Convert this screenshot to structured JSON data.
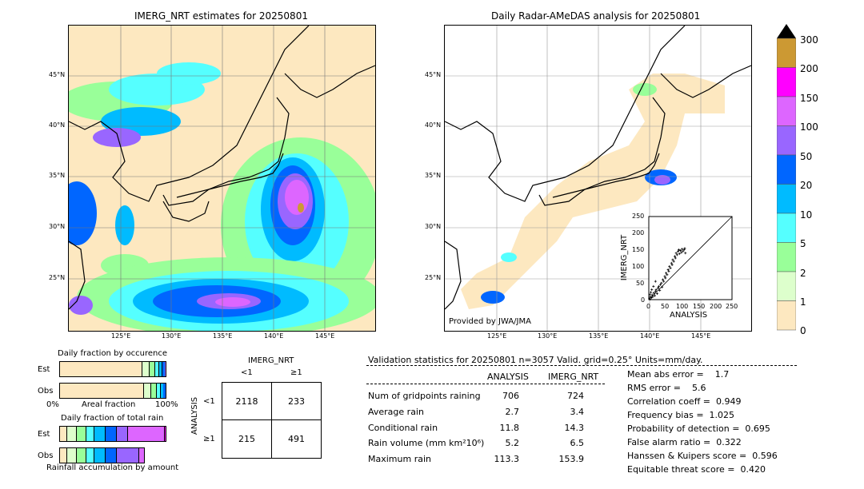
{
  "left_map": {
    "title": "IMERG_NRT estimates for 20250801",
    "lat_labels": [
      "45°N",
      "40°N",
      "35°N",
      "30°N",
      "25°N"
    ],
    "lon_labels": [
      "125°E",
      "130°E",
      "135°E",
      "140°E",
      "145°E"
    ]
  },
  "right_map": {
    "title": "Daily Radar-AMeDAS analysis for 20250801",
    "lat_labels": [
      "45°N",
      "40°N",
      "35°N",
      "30°N",
      "25°N"
    ],
    "lon_labels": [
      "125°E",
      "130°E",
      "135°E",
      "140°E",
      "145°E"
    ],
    "provided_by": "Provided by JWA/JMA"
  },
  "scatter_inset": {
    "xlabel": "ANALYSIS",
    "ylabel": "IMERG_NRT",
    "ticks": [
      "0",
      "50",
      "100",
      "150",
      "200",
      "250"
    ]
  },
  "colorbar": {
    "labels": [
      "300",
      "200",
      "150",
      "100",
      "50",
      "20",
      "10",
      "5",
      "2",
      "1",
      "0"
    ],
    "colors": [
      "#cc9933",
      "#ff00ff",
      "#dd66ff",
      "#9966ff",
      "#0066ff",
      "#00bbff",
      "#55ffff",
      "#99ff99",
      "#ddffcc",
      "#fde8c0"
    ]
  },
  "occurrence": {
    "title": "Daily fraction by occurence",
    "est_label": "Est",
    "obs_label": "Obs",
    "axis_left": "0%",
    "axis_mid": "Areal fraction",
    "axis_right": "100%"
  },
  "total_rain": {
    "title": "Daily fraction of total rain",
    "est_label": "Est",
    "obs_label": "Obs",
    "footer": "Rainfall accumulation by amount"
  },
  "contingency": {
    "col_title": "IMERG_NRT",
    "col_lt": "<1",
    "col_ge": "≥1",
    "row_title": "ANALYSIS",
    "row_lt": "<1",
    "row_ge": "≥1",
    "a": "2118",
    "b": "233",
    "c": "215",
    "d": "491"
  },
  "validation": {
    "header": "Validation statistics for 20250801  n=3057 Valid. grid=0.25° Units=mm/day.",
    "col_analysis": "ANALYSIS",
    "col_imerg": "IMERG_NRT",
    "rows": [
      {
        "label": "Num of gridpoints raining",
        "analysis": "706",
        "imerg": "724"
      },
      {
        "label": "Average rain",
        "analysis": "2.7",
        "imerg": "3.4"
      },
      {
        "label": "Conditional rain",
        "analysis": "11.8",
        "imerg": "14.3"
      },
      {
        "label": "Rain volume (mm km²10⁶)",
        "analysis": "5.2",
        "imerg": "6.5"
      },
      {
        "label": "Maximum rain",
        "analysis": "113.3",
        "imerg": "153.9"
      }
    ],
    "scores": [
      "Mean abs error =    1.7",
      "RMS error =    5.6",
      "Correlation coeff =  0.949",
      "Frequency bias =  1.025",
      "Probability of detection =  0.695",
      "False alarm ratio =  0.322",
      "Hanssen & Kuipers score =  0.596",
      "Equitable threat score =  0.420"
    ]
  },
  "chart_data": [
    {
      "type": "table",
      "title": "Validation statistics for 20250801  n=3057 Valid. grid=0.25° Units=mm/day.",
      "columns": [
        "ANALYSIS",
        "IMERG_NRT"
      ],
      "rows": [
        [
          "Num of gridpoints raining",
          706,
          724
        ],
        [
          "Average rain",
          2.7,
          3.4
        ],
        [
          "Conditional rain",
          11.8,
          14.3
        ],
        [
          "Rain volume (mm km²10⁶)",
          5.2,
          6.5
        ],
        [
          "Maximum rain",
          113.3,
          153.9
        ]
      ]
    },
    {
      "type": "table",
      "title": "",
      "columns": [
        "<1",
        "≥1"
      ],
      "rows": [
        [
          "<1",
          2118,
          233
        ],
        [
          "≥1",
          215,
          491
        ]
      ]
    },
    {
      "type": "scatter",
      "xlabel": "ANALYSIS",
      "ylabel": "IMERG_NRT",
      "xlim": [
        0,
        250
      ],
      "ylim": [
        0,
        250
      ],
      "points": [
        [
          2,
          3
        ],
        [
          4,
          1
        ],
        [
          5,
          8
        ],
        [
          8,
          6
        ],
        [
          10,
          14
        ],
        [
          12,
          9
        ],
        [
          15,
          20
        ],
        [
          18,
          12
        ],
        [
          20,
          25
        ],
        [
          22,
          30
        ],
        [
          25,
          18
        ],
        [
          28,
          35
        ],
        [
          30,
          40
        ],
        [
          33,
          28
        ],
        [
          35,
          45
        ],
        [
          38,
          50
        ],
        [
          40,
          38
        ],
        [
          42,
          60
        ],
        [
          45,
          55
        ],
        [
          48,
          70
        ],
        [
          50,
          65
        ],
        [
          52,
          80
        ],
        [
          55,
          75
        ],
        [
          58,
          90
        ],
        [
          60,
          85
        ],
        [
          62,
          100
        ],
        [
          65,
          95
        ],
        [
          68,
          110
        ],
        [
          70,
          105
        ],
        [
          72,
          120
        ],
        [
          75,
          115
        ],
        [
          78,
          130
        ],
        [
          80,
          125
        ],
        [
          82,
          140
        ],
        [
          85,
          135
        ],
        [
          88,
          145
        ],
        [
          90,
          150
        ],
        [
          92,
          138
        ],
        [
          95,
          148
        ],
        [
          98,
          142
        ],
        [
          100,
          152
        ],
        [
          103,
          146
        ],
        [
          106,
          150
        ],
        [
          108,
          154
        ],
        [
          110,
          140
        ],
        [
          3,
          15
        ],
        [
          6,
          22
        ],
        [
          9,
          30
        ],
        [
          14,
          40
        ],
        [
          20,
          55
        ]
      ]
    }
  ]
}
